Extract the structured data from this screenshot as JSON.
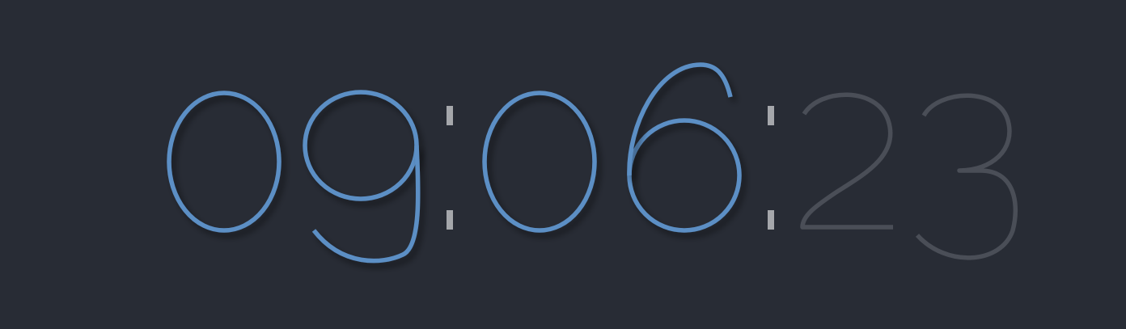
{
  "clock": {
    "hours": "09",
    "minutes": "06",
    "seconds": "23",
    "separator": ":",
    "colors": {
      "background": "#282c35",
      "active": "#5b8fc5",
      "dim": "#4a4e57",
      "separator": "#a5a7ab"
    }
  }
}
